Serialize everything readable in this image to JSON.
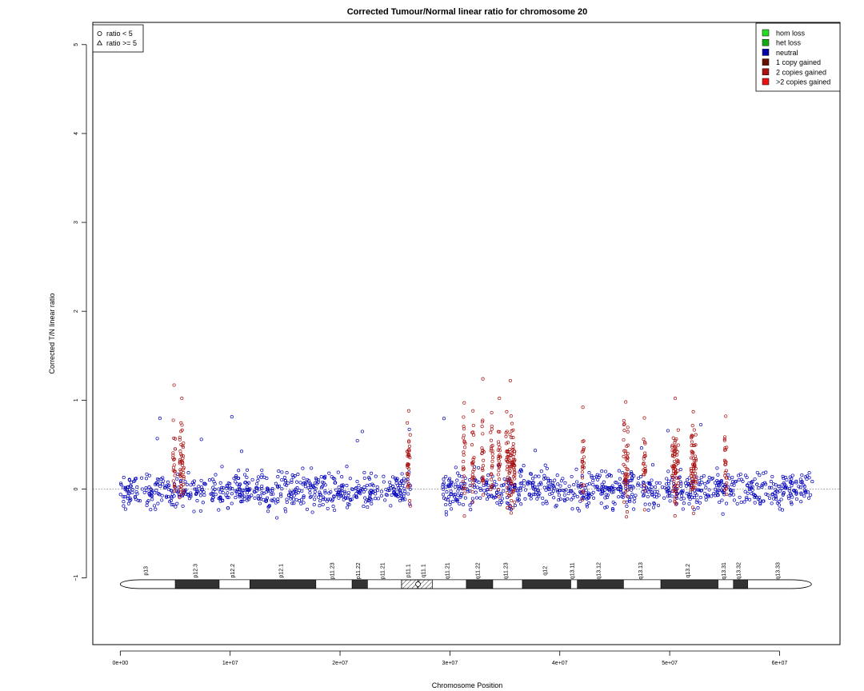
{
  "chart_data": {
    "type": "scatter",
    "title": "Corrected Tumour/Normal linear ratio for chromosome  20",
    "xlabel": "Chromosome Position",
    "ylabel": "Corrected T/N linear ratio",
    "xlim": [
      -2500000,
      65500000
    ],
    "ylim": [
      -1.75,
      5.25
    ],
    "x_ticks": [
      0,
      10000000,
      20000000,
      30000000,
      40000000,
      50000000,
      60000000
    ],
    "x_tick_labels": [
      "0e+00",
      "1e+07",
      "2e+07",
      "3e+07",
      "4e+07",
      "5e+07",
      "6e+07"
    ],
    "y_ticks": [
      -1,
      0,
      1,
      2,
      3,
      4,
      5
    ],
    "y_tick_labels": [
      "−1",
      "0",
      "1",
      "2",
      "3",
      "4",
      "5"
    ],
    "reference_line_y": 0,
    "point_legend": {
      "position": "top-left",
      "entries": [
        {
          "symbol": "circle",
          "label": "ratio < 5"
        },
        {
          "symbol": "triangle",
          "label": "ratio >= 5"
        }
      ]
    },
    "state_legend": {
      "position": "top-right",
      "entries": [
        {
          "label": "hom loss",
          "color": "#22dd22"
        },
        {
          "label": "het loss",
          "color": "#11aa11"
        },
        {
          "label": "neutral",
          "color": "#0000aa"
        },
        {
          "label": "1 copy gained",
          "color": "#661100"
        },
        {
          "label": "2 copies gained",
          "color": "#aa1111"
        },
        {
          "label": ">2 copies gained",
          "color": "#ee1111"
        }
      ]
    },
    "colors": {
      "neutral": "#0000bb",
      "gained": "#aa1111"
    },
    "point_clusters": [
      {
        "start": 0,
        "end": 26400000,
        "state": "neutral",
        "mean": -0.02,
        "spread": 0.18
      },
      {
        "start": 29300000,
        "end": 63000000,
        "state": "neutral",
        "mean": 0.0,
        "spread": 0.18
      }
    ],
    "gained_segments": [
      {
        "start": 4800000,
        "end": 5000000,
        "max": 1.17
      },
      {
        "start": 5400000,
        "end": 5800000,
        "max": 1.02
      },
      {
        "start": 26100000,
        "end": 26400000,
        "max": 0.88
      },
      {
        "start": 31200000,
        "end": 31400000,
        "max": 0.97
      },
      {
        "start": 32000000,
        "end": 32200000,
        "max": 0.88
      },
      {
        "start": 32900000,
        "end": 33100000,
        "max": 1.24
      },
      {
        "start": 33700000,
        "end": 33900000,
        "max": 0.86
      },
      {
        "start": 34400000,
        "end": 34600000,
        "max": 1.02
      },
      {
        "start": 35100000,
        "end": 35900000,
        "max": 1.22
      },
      {
        "start": 42000000,
        "end": 42200000,
        "max": 0.92
      },
      {
        "start": 45800000,
        "end": 46200000,
        "max": 0.98
      },
      {
        "start": 47600000,
        "end": 47800000,
        "max": 0.8
      },
      {
        "start": 50200000,
        "end": 50800000,
        "max": 1.02
      },
      {
        "start": 51900000,
        "end": 52400000,
        "max": 0.87
      },
      {
        "start": 55000000,
        "end": 55200000,
        "max": 0.82
      }
    ],
    "ideogram": {
      "y": -1.07,
      "label_y": -0.92,
      "bands": [
        {
          "name": "p13",
          "start": 0,
          "end": 5000000,
          "stain": "white"
        },
        {
          "name": "p12.3",
          "start": 5000000,
          "end": 9000000,
          "stain": "black"
        },
        {
          "name": "p12.2",
          "start": 9000000,
          "end": 11800000,
          "stain": "white"
        },
        {
          "name": "p12.1",
          "start": 11800000,
          "end": 17800000,
          "stain": "black"
        },
        {
          "name": "p11.23",
          "start": 17800000,
          "end": 21100000,
          "stain": "white"
        },
        {
          "name": "p11.22",
          "start": 21100000,
          "end": 22500000,
          "stain": "black"
        },
        {
          "name": "p11.21",
          "start": 22500000,
          "end": 25600000,
          "stain": "white"
        },
        {
          "name": "p11.1",
          "start": 25600000,
          "end": 27100000,
          "stain": "hatched"
        },
        {
          "name": "q11.1",
          "start": 27100000,
          "end": 28400000,
          "stain": "hatched"
        },
        {
          "name": "q11.21",
          "start": 28400000,
          "end": 31500000,
          "stain": "white"
        },
        {
          "name": "q11.22",
          "start": 31500000,
          "end": 33900000,
          "stain": "black"
        },
        {
          "name": "q11.23",
          "start": 33900000,
          "end": 36600000,
          "stain": "white"
        },
        {
          "name": "q12",
          "start": 36600000,
          "end": 41000000,
          "stain": "black"
        },
        {
          "name": "q13.11",
          "start": 41000000,
          "end": 41600000,
          "stain": "white"
        },
        {
          "name": "q13.12",
          "start": 41600000,
          "end": 45800000,
          "stain": "black"
        },
        {
          "name": "q13.13",
          "start": 45800000,
          "end": 49200000,
          "stain": "white"
        },
        {
          "name": "q13.2",
          "start": 49200000,
          "end": 54400000,
          "stain": "black"
        },
        {
          "name": "q13.31",
          "start": 54400000,
          "end": 55800000,
          "stain": "white"
        },
        {
          "name": "q13.32",
          "start": 55800000,
          "end": 57100000,
          "stain": "black"
        },
        {
          "name": "q13.33",
          "start": 57100000,
          "end": 62900000,
          "stain": "white"
        }
      ]
    }
  }
}
